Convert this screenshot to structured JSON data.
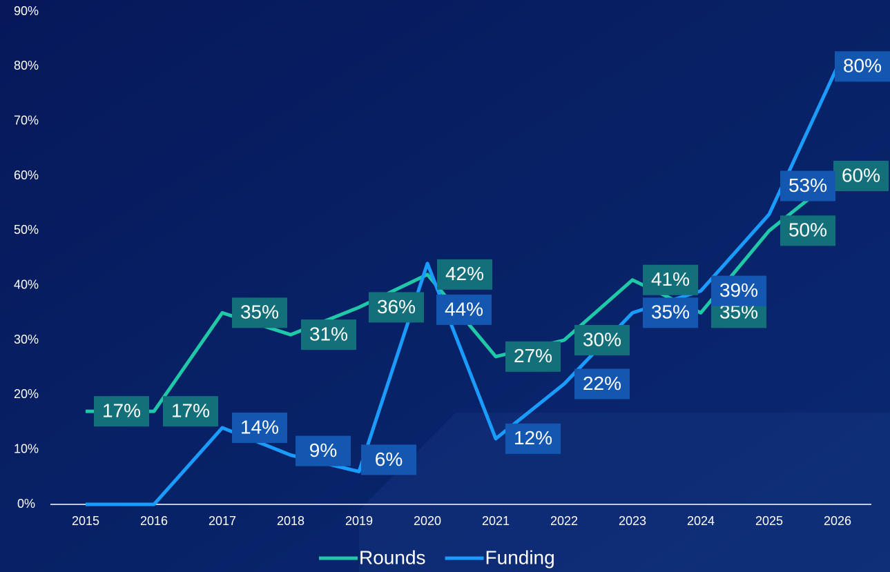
{
  "chart_data": {
    "type": "line",
    "categories": [
      "2015",
      "2016",
      "2017",
      "2018",
      "2019",
      "2020",
      "2021",
      "2022",
      "2023",
      "2024",
      "2025",
      "2026"
    ],
    "series": [
      {
        "name": "Rounds",
        "color": "#1fc8a6",
        "label_color": "#13707a",
        "values": [
          17,
          17,
          35,
          31,
          36,
          42,
          27,
          30,
          41,
          35,
          50,
          60
        ],
        "value_labels": [
          "17%",
          "17%",
          "35%",
          "31%",
          "36%",
          "42%",
          "27%",
          "30%",
          "41%",
          "35%",
          "50%",
          "60%"
        ]
      },
      {
        "name": "Funding",
        "color": "#1a9cff",
        "label_color": "#1457b0",
        "values": [
          0,
          0,
          14,
          9,
          6,
          44,
          12,
          22,
          35,
          39,
          53,
          80
        ],
        "value_labels": [
          null,
          null,
          "14%",
          "9%",
          "6%",
          "44%",
          "12%",
          "22%",
          "35%",
          "39%",
          "53%",
          "80%"
        ]
      }
    ],
    "ylim": [
      0,
      90
    ],
    "yticks": [
      {
        "value": 0,
        "label": "0%"
      },
      {
        "value": 10,
        "label": "10%"
      },
      {
        "value": 20,
        "label": "20%"
      },
      {
        "value": 30,
        "label": "30%"
      },
      {
        "value": 40,
        "label": "40%"
      },
      {
        "value": 50,
        "label": "50%"
      },
      {
        "value": 60,
        "label": "60%"
      },
      {
        "value": 70,
        "label": "70%"
      },
      {
        "value": 80,
        "label": "80%"
      },
      {
        "value": 90,
        "label": "90%"
      }
    ],
    "legend": "bottom"
  }
}
